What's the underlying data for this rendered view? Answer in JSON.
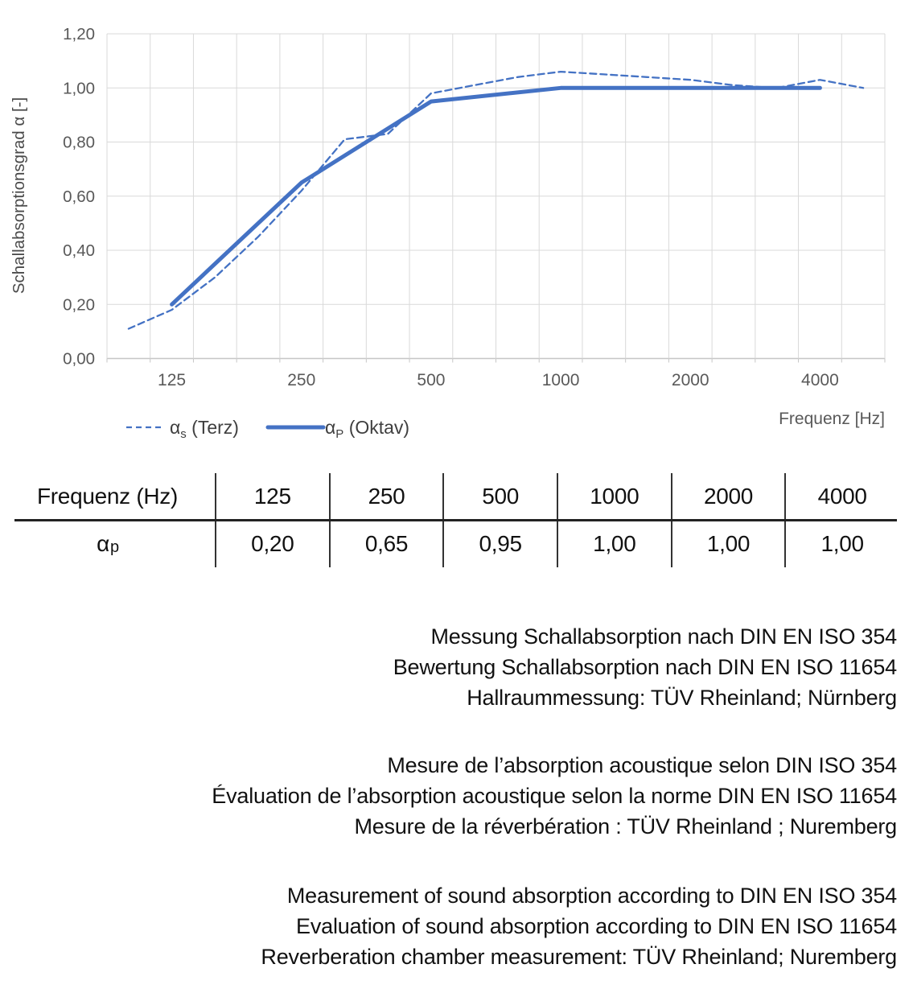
{
  "chart": {
    "y_axis_title": "Schallabsorptionsgrad α [-]",
    "x_axis_title": "Frequenz [Hz]",
    "y_tick_labels": [
      "0,00",
      "0,20",
      "0,40",
      "0,60",
      "0,80",
      "1,00",
      "1,20"
    ],
    "x_tick_labels": [
      "125",
      "250",
      "500",
      "1000",
      "2000",
      "4000"
    ],
    "legend": [
      {
        "symbol_main": "α",
        "symbol_sub": "s",
        "label_rest": " (Terz)",
        "style": "dashed"
      },
      {
        "symbol_main": "α",
        "symbol_sub": "P",
        "label_rest": " (Oktav)",
        "style": "solid"
      }
    ],
    "colors": {
      "line": "#4472C4",
      "grid": "#D9D9D9",
      "axis_line": "#C6C6C6",
      "tick_text": "#595959",
      "axis_title_text": "#595959",
      "legend_text": "#3f3f3f"
    }
  },
  "chart_data": {
    "type": "line",
    "x_scale": "third-octave categories (log-spaced)",
    "categories": [
      100,
      125,
      160,
      200,
      250,
      315,
      400,
      500,
      630,
      800,
      1000,
      1250,
      1600,
      2000,
      2500,
      3150,
      4000,
      5000
    ],
    "series": [
      {
        "name": "αs (Terz)",
        "style": "dashed",
        "values": [
          0.11,
          0.18,
          0.3,
          0.45,
          0.62,
          0.81,
          0.83,
          0.98,
          1.01,
          1.04,
          1.06,
          1.05,
          1.04,
          1.03,
          1.01,
          1.0,
          1.03,
          1.0
        ]
      },
      {
        "name": "αP (Oktav)",
        "style": "solid",
        "x": [
          125,
          250,
          500,
          1000,
          2000,
          4000
        ],
        "values": [
          0.2,
          0.65,
          0.95,
          1.0,
          1.0,
          1.0
        ]
      }
    ],
    "ylim": [
      0,
      1.2
    ],
    "y_tick_step": 0.2,
    "grid": true,
    "legend_position": "bottom-left",
    "title": "",
    "xlabel": "Frequenz [Hz]",
    "ylabel": "Schallabsorptionsgrad α [-]"
  },
  "table": {
    "header": [
      "Frequenz (Hz)",
      "125",
      "250",
      "500",
      "1000",
      "2000",
      "4000"
    ],
    "row_label_main": "α",
    "row_label_sub": "p",
    "values": [
      "0,20",
      "0,65",
      "0,95",
      "1,00",
      "1,00",
      "1,00"
    ]
  },
  "notes": {
    "german": [
      "Messung Schallabsorption nach DIN EN ISO 354",
      "Bewertung Schallabsorption nach DIN EN ISO 11654",
      "Hallraummessung: TÜV Rheinland; Nürnberg"
    ],
    "french": [
      "Mesure de l’absorption acoustique selon DIN ISO 354",
      "Évaluation de l’absorption acoustique selon la norme DIN EN ISO 11654",
      "Mesure de la réverbération : TÜV Rheinland ; Nuremberg"
    ],
    "english": [
      "Measurement of sound absorption according to DIN EN ISO 354",
      "Evaluation of sound absorption according to DIN EN ISO 11654",
      "Reverberation chamber measurement: TÜV Rheinland; Nuremberg"
    ]
  }
}
